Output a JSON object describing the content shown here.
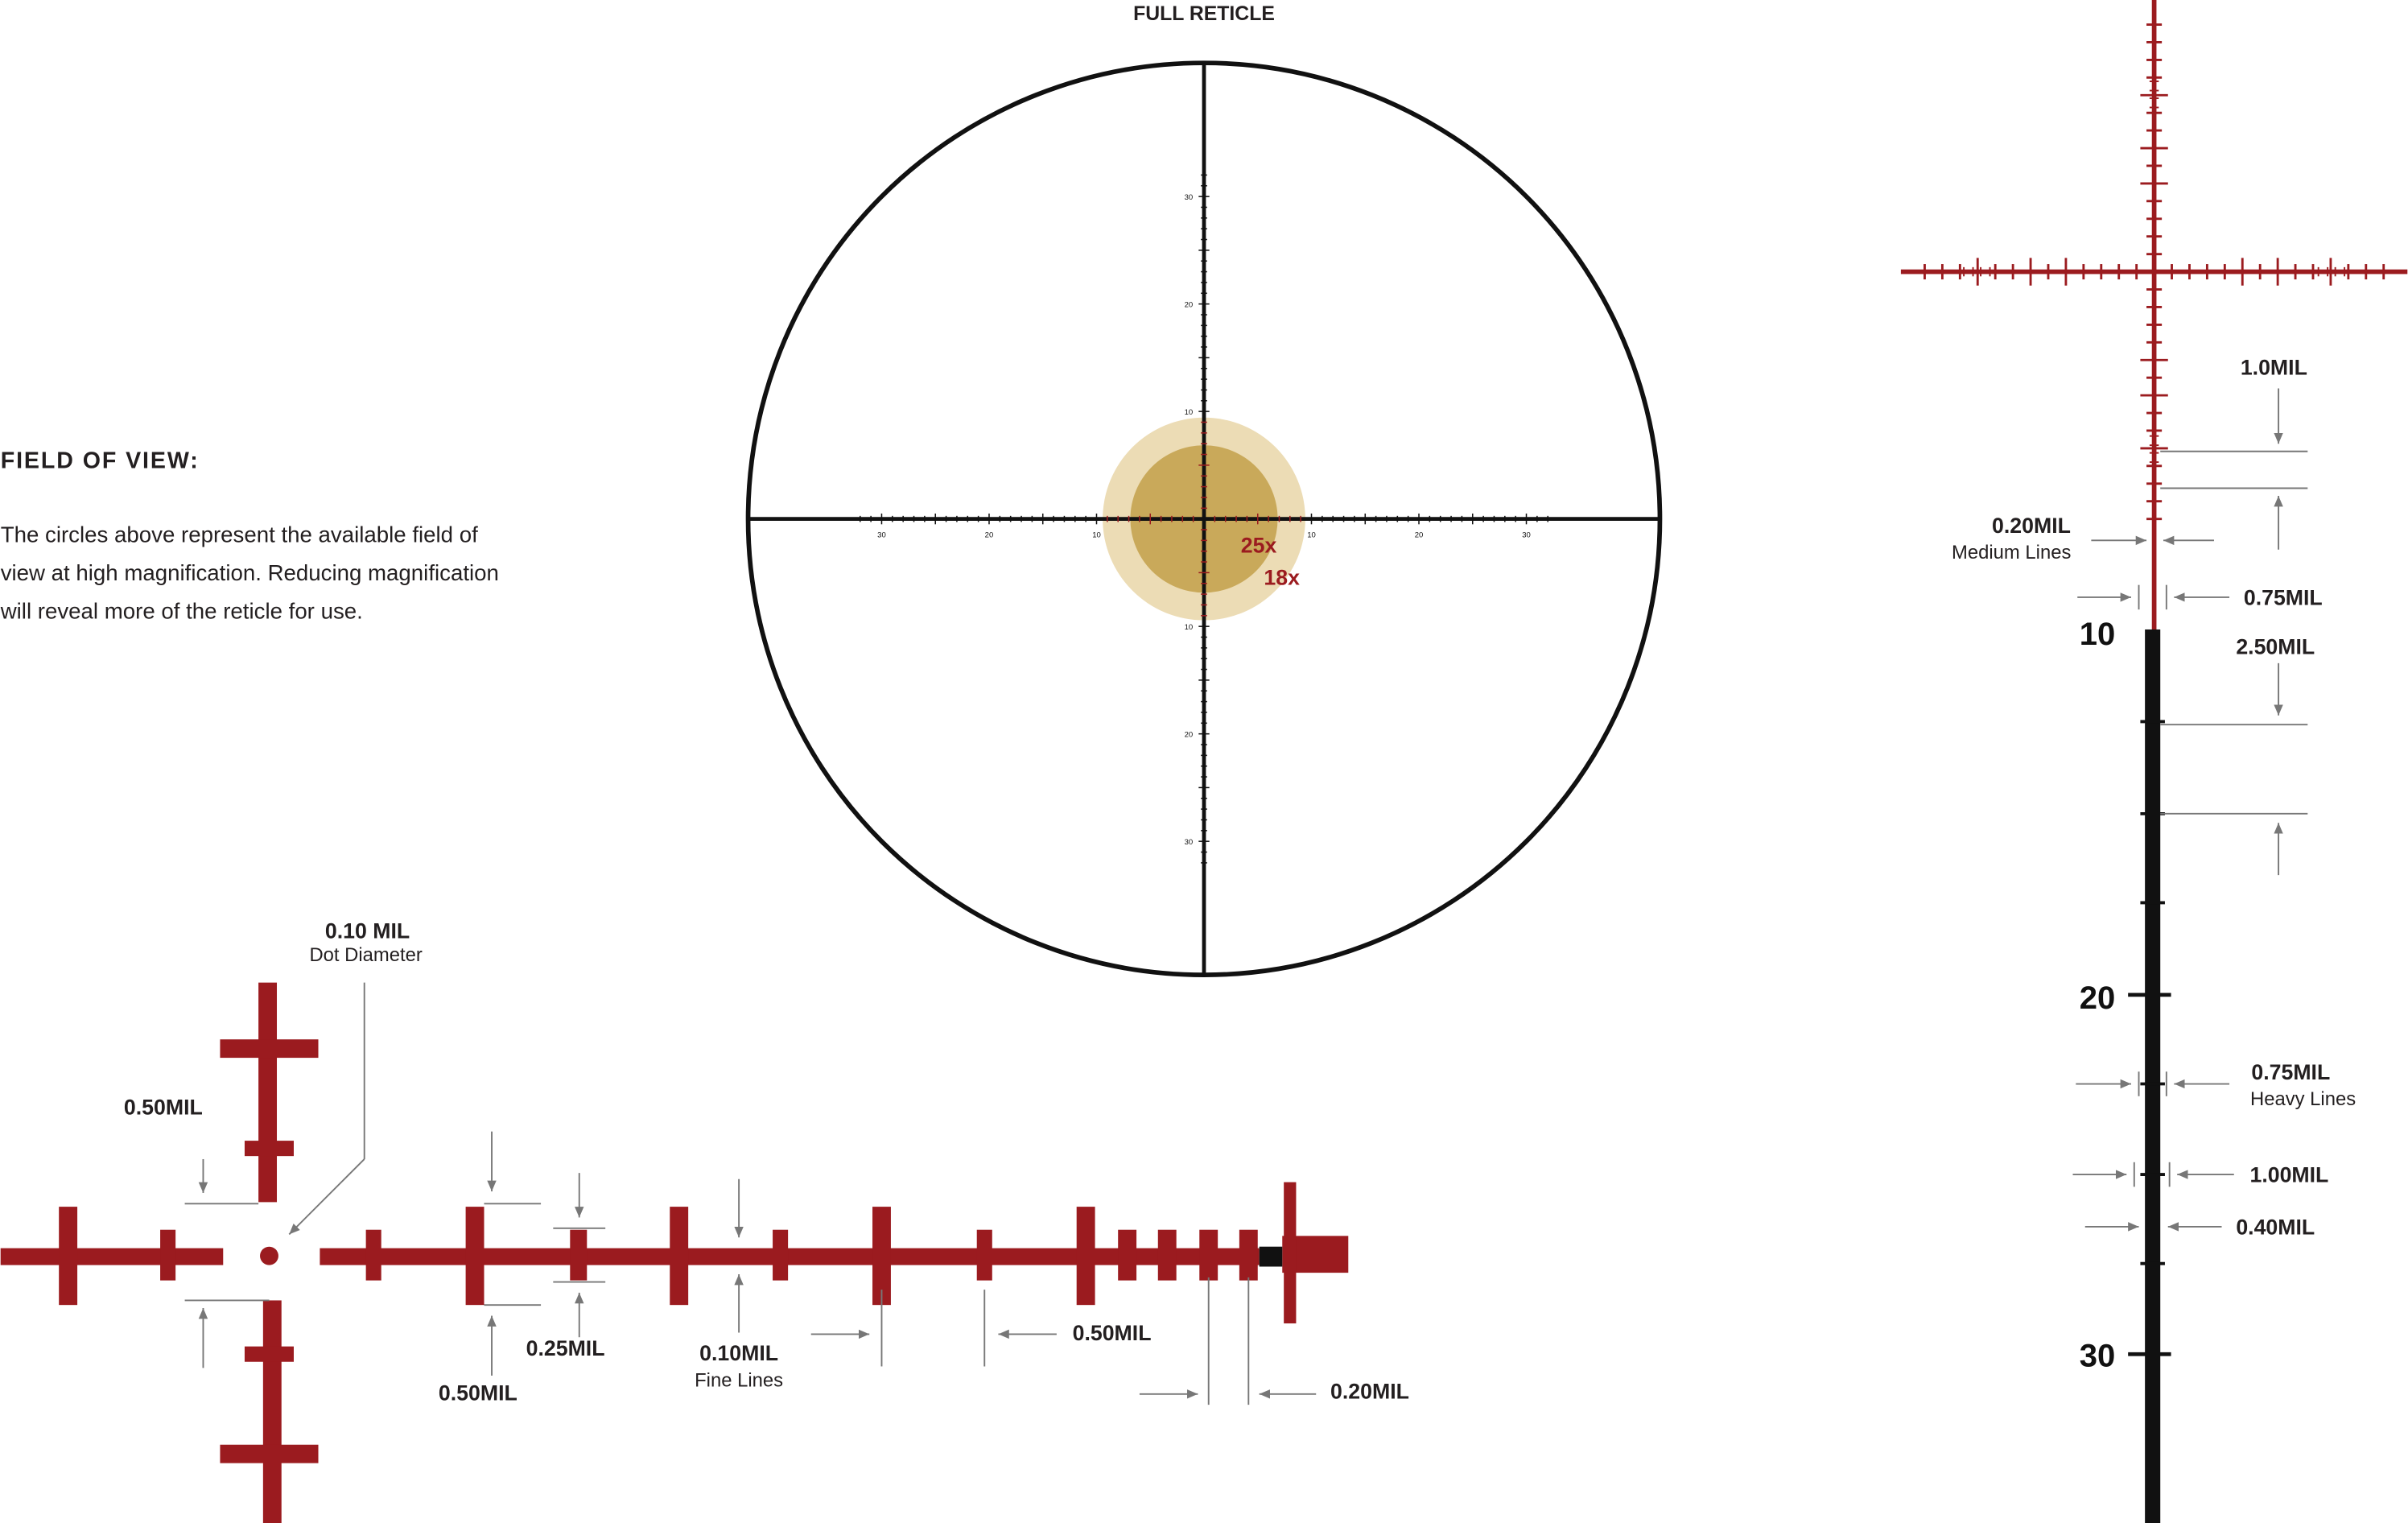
{
  "full_reticle": {
    "title": "FULL RETICLE",
    "scale_labels": [
      "10",
      "20",
      "30"
    ],
    "fov_labels": [
      "25x",
      "18x"
    ]
  },
  "field_of_view": {
    "heading": "FIELD OF VIEW:",
    "lines": [
      "The circles above represent the available field of",
      "view at high magnification. Reducing magnification",
      "will reveal more of the reticle for use."
    ]
  },
  "horizontal_detail": {
    "callouts": [
      {
        "value": "0.10 MIL",
        "note": "Dot Diameter"
      },
      {
        "value": "0.50MIL"
      },
      {
        "value": "0.50MIL"
      },
      {
        "value": "0.25MIL"
      },
      {
        "value": "0.10MIL",
        "note": "Fine Lines"
      },
      {
        "value": "0.50MIL"
      },
      {
        "value": "0.20MIL"
      }
    ]
  },
  "vertical_detail": {
    "scale_labels": [
      "10",
      "20",
      "30"
    ],
    "callouts": [
      {
        "value": "1.0MIL"
      },
      {
        "value": "0.20MIL",
        "note": "Medium Lines"
      },
      {
        "value": "0.75MIL"
      },
      {
        "value": "2.50MIL"
      },
      {
        "value": "0.75MIL",
        "note": "Heavy Lines"
      },
      {
        "value": "1.00MIL"
      },
      {
        "value": "0.40MIL"
      }
    ]
  }
}
